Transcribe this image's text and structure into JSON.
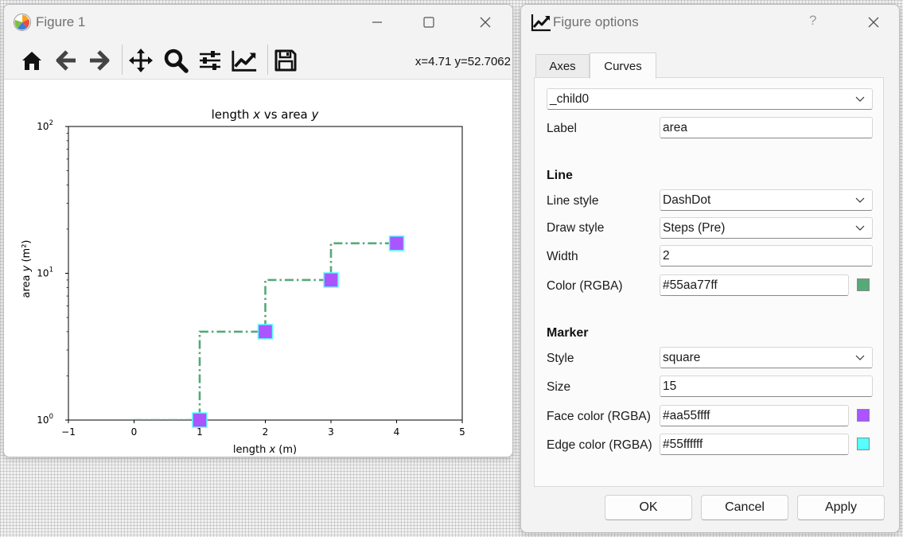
{
  "figure_window": {
    "title": "Figure 1",
    "coords_readout": "x=4.71 y=52.7062"
  },
  "toolbar_icons": [
    "home-icon",
    "back-arrow-icon",
    "forward-arrow-icon",
    "pan-icon",
    "zoom-icon",
    "subplots-config-icon",
    "edit-axis-curve-icon",
    "save-icon"
  ],
  "chart_data": {
    "type": "line",
    "title": "length x vs area y",
    "xlabel": "length x (m)",
    "ylabel": "area y (m²)",
    "xlim": [
      -1,
      5
    ],
    "ylim": [
      1,
      100
    ],
    "yscale": "log",
    "x_ticks": [
      "−1",
      "0",
      "1",
      "2",
      "3",
      "4",
      "5"
    ],
    "y_ticks": [
      "10",
      "10",
      "10"
    ],
    "y_tick_exponents": [
      "0",
      "1",
      "2"
    ],
    "drawstyle": "steps-pre",
    "linestyle": "dashdot",
    "line_color": "#55aa77",
    "marker": "square",
    "marker_face": "#aa55ff",
    "marker_edge": "#55ffff",
    "series": [
      {
        "name": "area",
        "x": [
          0,
          1,
          2,
          3,
          4
        ],
        "y": [
          0,
          1,
          4,
          9,
          16
        ]
      }
    ]
  },
  "dialog": {
    "title": "Figure options",
    "help": "?",
    "tabs": [
      {
        "label": "Axes",
        "active": false
      },
      {
        "label": "Curves",
        "active": true
      }
    ],
    "curve_select": "_child0",
    "label_field": {
      "label": "Label",
      "value": "area"
    },
    "line_section": "Line",
    "line_style": {
      "label": "Line style",
      "value": "DashDot"
    },
    "draw_style": {
      "label": "Draw style",
      "value": "Steps (Pre)"
    },
    "width": {
      "label": "Width",
      "value": "2"
    },
    "line_color": {
      "label": "Color (RGBA)",
      "value": "#55aa77ff",
      "swatch": "#55aa77"
    },
    "marker_section": "Marker",
    "marker_style": {
      "label": "Style",
      "value": "square"
    },
    "marker_size": {
      "label": "Size",
      "value": "15"
    },
    "face_color": {
      "label": "Face color (RGBA)",
      "value": "#aa55ffff",
      "swatch": "#aa55ff"
    },
    "edge_color": {
      "label": "Edge color (RGBA)",
      "value": "#55ffffff",
      "swatch": "#55ffff"
    },
    "buttons": {
      "ok": "OK",
      "cancel": "Cancel",
      "apply": "Apply"
    }
  }
}
